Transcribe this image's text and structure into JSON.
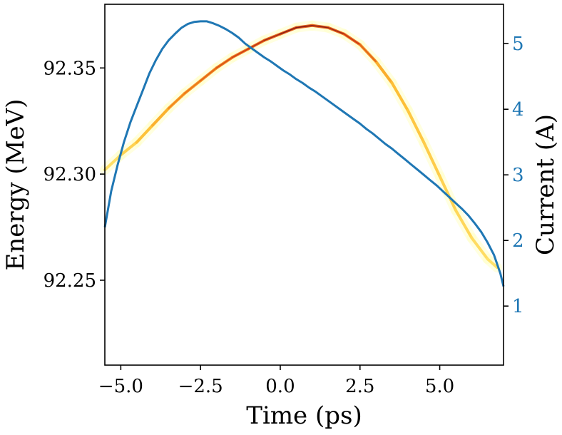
{
  "chart_data": {
    "type": "line",
    "title": "",
    "xlabel": "Time (ps)",
    "ylabel_left": "Energy (MeV)",
    "ylabel_right": "Current (A)",
    "xlim": [
      -5.5,
      7.0
    ],
    "ylim_left": [
      92.21,
      92.38
    ],
    "ylim_right": [
      0.1,
      5.6
    ],
    "x_ticks": [
      -5.0,
      -2.5,
      0.0,
      2.5,
      5.0
    ],
    "x_tick_labels": [
      "−5.0",
      "−2.5",
      "0.0",
      "2.5",
      "5.0"
    ],
    "y_left_ticks": [
      92.25,
      92.3,
      92.35
    ],
    "y_left_tick_labels": [
      "92.25",
      "92.30",
      "92.35"
    ],
    "y_right_ticks": [
      1,
      2,
      3,
      4,
      5
    ],
    "y_right_tick_labels": [
      "1",
      "2",
      "3",
      "4",
      "5"
    ],
    "right_axis_color": "#1f77b4",
    "grid": false,
    "legend": "none",
    "series": [
      {
        "kind": "heatmap-band",
        "axis": "left",
        "colormap": [
          "#ffffcc",
          "#ffe066",
          "#fdb92e",
          "#f07b1c",
          "#c8321c",
          "#6d0f12"
        ],
        "x": [
          -5.5,
          -5.0,
          -4.5,
          -4.0,
          -3.5,
          -3.0,
          -2.5,
          -2.0,
          -1.5,
          -1.0,
          -0.5,
          0.0,
          0.5,
          1.0,
          1.5,
          2.0,
          2.5,
          3.0,
          3.5,
          4.0,
          4.5,
          5.0,
          5.5,
          6.0,
          6.5,
          6.8
        ],
        "y": [
          92.302,
          92.309,
          92.315,
          92.323,
          92.331,
          92.338,
          92.344,
          92.35,
          92.355,
          92.359,
          92.363,
          92.366,
          92.369,
          92.37,
          92.369,
          92.366,
          92.361,
          92.353,
          92.343,
          92.33,
          92.315,
          92.299,
          92.283,
          92.27,
          92.26,
          92.256
        ],
        "intensity": [
          0.05,
          0.15,
          0.3,
          0.45,
          0.55,
          0.6,
          0.65,
          0.7,
          0.75,
          0.8,
          0.85,
          0.9,
          0.95,
          0.95,
          0.9,
          0.85,
          0.75,
          0.6,
          0.45,
          0.35,
          0.3,
          0.25,
          0.2,
          0.15,
          0.1,
          0.05
        ]
      },
      {
        "kind": "line",
        "axis": "right",
        "color": "#1f77b4",
        "x": [
          -5.5,
          -5.3,
          -5.1,
          -4.9,
          -4.7,
          -4.5,
          -4.3,
          -4.1,
          -3.9,
          -3.7,
          -3.5,
          -3.3,
          -3.1,
          -2.9,
          -2.7,
          -2.5,
          -2.3,
          -2.1,
          -1.9,
          -1.7,
          -1.5,
          -1.3,
          -1.1,
          -0.9,
          -0.7,
          -0.5,
          -0.3,
          -0.1,
          0.1,
          0.3,
          0.5,
          0.7,
          0.9,
          1.1,
          1.3,
          1.5,
          1.7,
          1.9,
          2.1,
          2.3,
          2.5,
          2.7,
          2.9,
          3.1,
          3.3,
          3.5,
          3.7,
          3.9,
          4.1,
          4.3,
          4.5,
          4.7,
          4.9,
          5.1,
          5.3,
          5.5,
          5.7,
          5.9,
          6.1,
          6.3,
          6.5,
          6.7,
          6.9,
          7.0
        ],
        "y": [
          2.2,
          2.75,
          3.15,
          3.5,
          3.8,
          4.05,
          4.3,
          4.55,
          4.75,
          4.92,
          5.05,
          5.15,
          5.24,
          5.3,
          5.33,
          5.34,
          5.34,
          5.31,
          5.27,
          5.22,
          5.16,
          5.09,
          5.0,
          4.93,
          4.86,
          4.79,
          4.73,
          4.66,
          4.59,
          4.53,
          4.46,
          4.4,
          4.33,
          4.27,
          4.2,
          4.13,
          4.06,
          3.99,
          3.92,
          3.85,
          3.78,
          3.7,
          3.63,
          3.55,
          3.47,
          3.4,
          3.32,
          3.24,
          3.16,
          3.08,
          3.0,
          2.92,
          2.84,
          2.75,
          2.66,
          2.57,
          2.48,
          2.38,
          2.26,
          2.13,
          1.97,
          1.78,
          1.5,
          1.3
        ]
      }
    ]
  }
}
